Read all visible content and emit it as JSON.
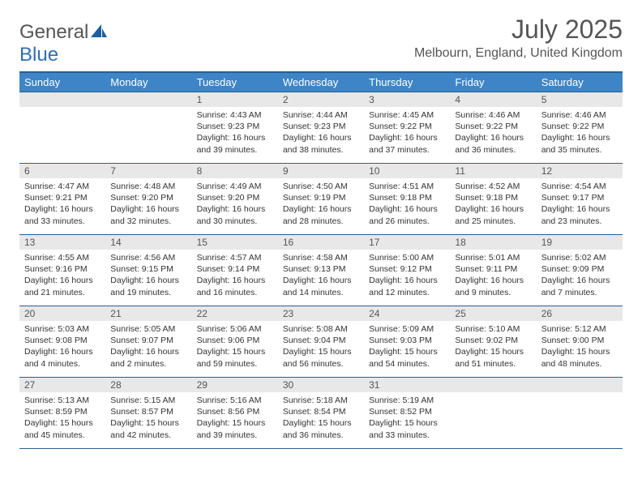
{
  "logo": {
    "text1": "General",
    "text2": "Blue"
  },
  "title": "July 2025",
  "location": "Melbourn, England, United Kingdom",
  "colors": {
    "header_bg": "#3d85c6",
    "header_border": "#2b5f91",
    "daynum_bg": "#e8e8e8",
    "text": "#555555"
  },
  "weekdays": [
    "Sunday",
    "Monday",
    "Tuesday",
    "Wednesday",
    "Thursday",
    "Friday",
    "Saturday"
  ],
  "weeks": [
    [
      null,
      null,
      {
        "n": "1",
        "sr": "4:43 AM",
        "ss": "9:23 PM",
        "dl": "16 hours and 39 minutes."
      },
      {
        "n": "2",
        "sr": "4:44 AM",
        "ss": "9:23 PM",
        "dl": "16 hours and 38 minutes."
      },
      {
        "n": "3",
        "sr": "4:45 AM",
        "ss": "9:22 PM",
        "dl": "16 hours and 37 minutes."
      },
      {
        "n": "4",
        "sr": "4:46 AM",
        "ss": "9:22 PM",
        "dl": "16 hours and 36 minutes."
      },
      {
        "n": "5",
        "sr": "4:46 AM",
        "ss": "9:22 PM",
        "dl": "16 hours and 35 minutes."
      }
    ],
    [
      {
        "n": "6",
        "sr": "4:47 AM",
        "ss": "9:21 PM",
        "dl": "16 hours and 33 minutes."
      },
      {
        "n": "7",
        "sr": "4:48 AM",
        "ss": "9:20 PM",
        "dl": "16 hours and 32 minutes."
      },
      {
        "n": "8",
        "sr": "4:49 AM",
        "ss": "9:20 PM",
        "dl": "16 hours and 30 minutes."
      },
      {
        "n": "9",
        "sr": "4:50 AM",
        "ss": "9:19 PM",
        "dl": "16 hours and 28 minutes."
      },
      {
        "n": "10",
        "sr": "4:51 AM",
        "ss": "9:18 PM",
        "dl": "16 hours and 26 minutes."
      },
      {
        "n": "11",
        "sr": "4:52 AM",
        "ss": "9:18 PM",
        "dl": "16 hours and 25 minutes."
      },
      {
        "n": "12",
        "sr": "4:54 AM",
        "ss": "9:17 PM",
        "dl": "16 hours and 23 minutes."
      }
    ],
    [
      {
        "n": "13",
        "sr": "4:55 AM",
        "ss": "9:16 PM",
        "dl": "16 hours and 21 minutes."
      },
      {
        "n": "14",
        "sr": "4:56 AM",
        "ss": "9:15 PM",
        "dl": "16 hours and 19 minutes."
      },
      {
        "n": "15",
        "sr": "4:57 AM",
        "ss": "9:14 PM",
        "dl": "16 hours and 16 minutes."
      },
      {
        "n": "16",
        "sr": "4:58 AM",
        "ss": "9:13 PM",
        "dl": "16 hours and 14 minutes."
      },
      {
        "n": "17",
        "sr": "5:00 AM",
        "ss": "9:12 PM",
        "dl": "16 hours and 12 minutes."
      },
      {
        "n": "18",
        "sr": "5:01 AM",
        "ss": "9:11 PM",
        "dl": "16 hours and 9 minutes."
      },
      {
        "n": "19",
        "sr": "5:02 AM",
        "ss": "9:09 PM",
        "dl": "16 hours and 7 minutes."
      }
    ],
    [
      {
        "n": "20",
        "sr": "5:03 AM",
        "ss": "9:08 PM",
        "dl": "16 hours and 4 minutes."
      },
      {
        "n": "21",
        "sr": "5:05 AM",
        "ss": "9:07 PM",
        "dl": "16 hours and 2 minutes."
      },
      {
        "n": "22",
        "sr": "5:06 AM",
        "ss": "9:06 PM",
        "dl": "15 hours and 59 minutes."
      },
      {
        "n": "23",
        "sr": "5:08 AM",
        "ss": "9:04 PM",
        "dl": "15 hours and 56 minutes."
      },
      {
        "n": "24",
        "sr": "5:09 AM",
        "ss": "9:03 PM",
        "dl": "15 hours and 54 minutes."
      },
      {
        "n": "25",
        "sr": "5:10 AM",
        "ss": "9:02 PM",
        "dl": "15 hours and 51 minutes."
      },
      {
        "n": "26",
        "sr": "5:12 AM",
        "ss": "9:00 PM",
        "dl": "15 hours and 48 minutes."
      }
    ],
    [
      {
        "n": "27",
        "sr": "5:13 AM",
        "ss": "8:59 PM",
        "dl": "15 hours and 45 minutes."
      },
      {
        "n": "28",
        "sr": "5:15 AM",
        "ss": "8:57 PM",
        "dl": "15 hours and 42 minutes."
      },
      {
        "n": "29",
        "sr": "5:16 AM",
        "ss": "8:56 PM",
        "dl": "15 hours and 39 minutes."
      },
      {
        "n": "30",
        "sr": "5:18 AM",
        "ss": "8:54 PM",
        "dl": "15 hours and 36 minutes."
      },
      {
        "n": "31",
        "sr": "5:19 AM",
        "ss": "8:52 PM",
        "dl": "15 hours and 33 minutes."
      },
      null,
      null
    ]
  ],
  "labels": {
    "sunrise": "Sunrise:",
    "sunset": "Sunset:",
    "daylight": "Daylight:"
  }
}
